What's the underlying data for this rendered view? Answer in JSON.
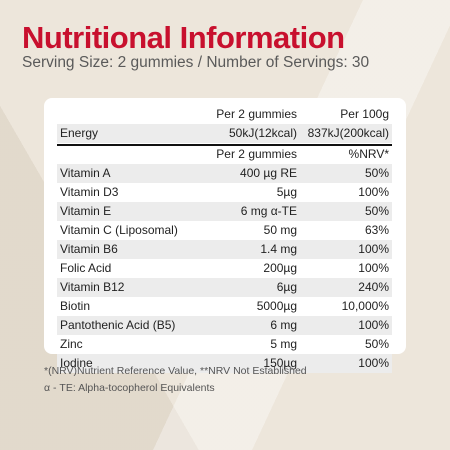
{
  "title": "Nutritional Information",
  "subtitle": "Serving Size: 2 gummies  / Number of Servings: 30",
  "energy_header": {
    "col2": "Per 2 gummies",
    "col3": "Per 100g"
  },
  "energy_row": {
    "name": "Energy",
    "col2": "50kJ(12kcal)",
    "col3": "837kJ(200kcal)"
  },
  "vitamin_header": {
    "col2": "Per 2 gummies",
    "col3": "%NRV*"
  },
  "rows": [
    {
      "name": "Vitamin A",
      "amount": "400 µg RE",
      "nrv": "50%"
    },
    {
      "name": "Vitamin D3",
      "amount": "5µg",
      "nrv": "100%"
    },
    {
      "name": "Vitamin E",
      "amount": "6 mg α-TE",
      "nrv": "50%"
    },
    {
      "name": "Vitamin C (Liposomal)",
      "amount": "50 mg",
      "nrv": "63%"
    },
    {
      "name": "Vitamin B6",
      "amount": "1.4 mg",
      "nrv": "100%"
    },
    {
      "name": "Folic Acid",
      "amount": "200µg",
      "nrv": "100%"
    },
    {
      "name": "Vitamin B12",
      "amount": "6µg",
      "nrv": "240%"
    },
    {
      "name": "Biotin",
      "amount": "5000µg",
      "nrv": "10,000%"
    },
    {
      "name": "Pantothenic Acid (B5)",
      "amount": "6 mg",
      "nrv": "100%"
    },
    {
      "name": "Zinc",
      "amount": "5 mg",
      "nrv": "50%"
    },
    {
      "name": "Iodine",
      "amount": "150µg",
      "nrv": "100%"
    }
  ],
  "footnotes": [
    "*(NRV)Nutrient Reference Value, **NRV Not Established",
    "α - TE: Alpha-tocopherol Equivalents"
  ]
}
